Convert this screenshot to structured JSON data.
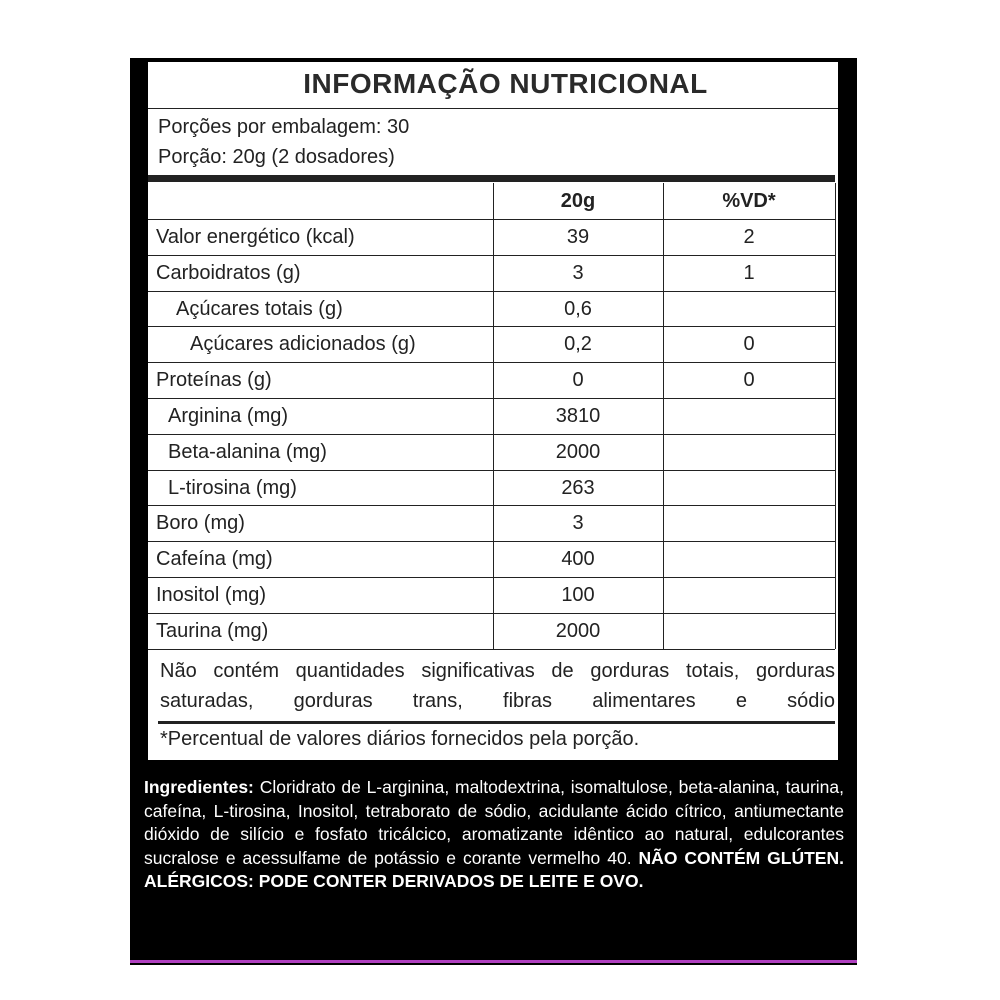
{
  "header": {
    "title": "INFORMAÇÃO NUTRICIONAL"
  },
  "servings": [
    "Porções por embalagem: 30",
    "Porção: 20g (2 dosadores)"
  ],
  "table": {
    "columns": [
      "20g",
      "%VD*"
    ],
    "rows": [
      {
        "label": "Valor energético (kcal)",
        "amount": 39,
        "vd": 2
      },
      {
        "label": "Carboidratos (g)",
        "amount": 3,
        "vd": 1
      },
      {
        "label": "Açúcares totais (g)",
        "amount": "0,6"
      },
      {
        "label": "Açúcares adicionados (g)",
        "amount": "0,2",
        "vd": 0
      },
      {
        "label": "Proteínas (g)",
        "amount": 0,
        "vd": 0
      },
      {
        "label": "Arginina (mg)",
        "amount": 3810
      },
      {
        "label": "Beta-alanina (mg)",
        "amount": 2000
      },
      {
        "label": "L-tirosina (mg)",
        "amount": 263
      },
      {
        "label": "Boro (mg)",
        "amount": 3
      },
      {
        "label": "Cafeína (mg)",
        "amount": 400
      },
      {
        "label": "Inositol (mg)",
        "amount": 100
      },
      {
        "label": "Taurina (mg)",
        "amount": 2000
      }
    ]
  },
  "note": "Não contém quantidades significativas de gorduras totais, gorduras saturadas, gorduras trans, fibras alimentares e sódio",
  "footnote": "*Percentual de valores diários fornecidos pela porção.",
  "ingredients": {
    "heading": "Ingredientes:",
    "text": "Cloridrato de L-arginina, maltodextrina, isomaltulose, beta-alanina, taurina, cafeína, L-tirosina, Inositol, tetraborato de sódio, acidulante ácido cítrico, antiumectante dióxido de silício e fosfato tricálcico, aromatizante idêntico ao natural, edulcorantes sucralose e acessulfame de potássio e corante vermelho 40.",
    "warning": "NÃO CONTÉM GLÚTEN. ALÉRGICOS: PODE CONTER DERIVADOS DE LEITE E OVO."
  }
}
